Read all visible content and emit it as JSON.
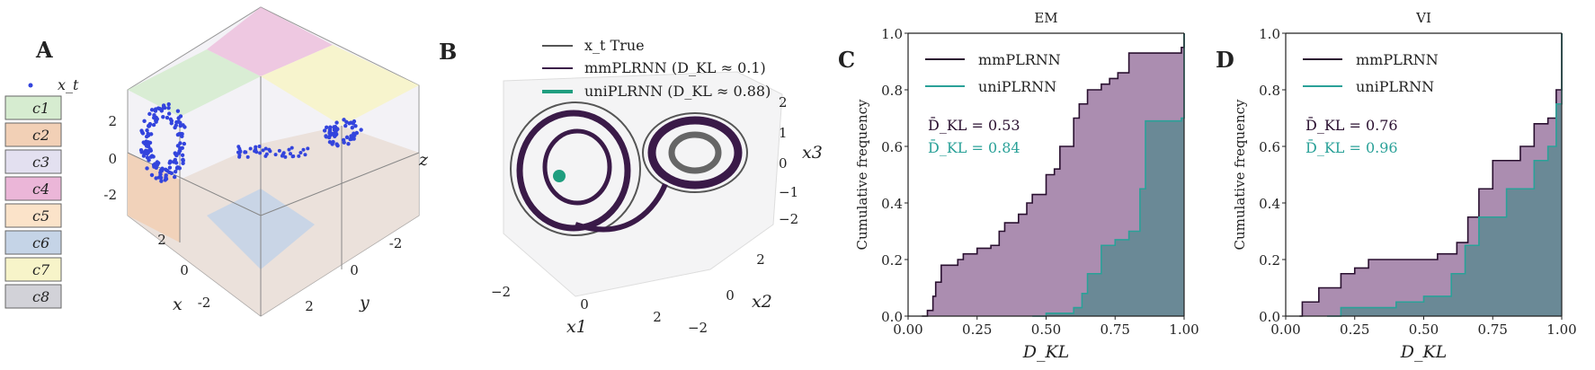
{
  "panel_a": {
    "label": "A",
    "legend_point": "x_t",
    "legend": [
      {
        "label": "c1",
        "color": "#d6ecd0"
      },
      {
        "label": "c2",
        "color": "#f2d0b6"
      },
      {
        "label": "c3",
        "color": "#e3e0f0"
      },
      {
        "label": "c4",
        "color": "#ebb6d8"
      },
      {
        "label": "c5",
        "color": "#fbe3c9"
      },
      {
        "label": "c6",
        "color": "#c5d4e7"
      },
      {
        "label": "c7",
        "color": "#f7f4c9"
      },
      {
        "label": "c8",
        "color": "#d2d2d8"
      }
    ],
    "z_ticks": [
      "2",
      "0",
      "-2"
    ],
    "x_ticks": [
      "2",
      "0",
      "-2"
    ],
    "y_ticks": [
      "-2",
      "0",
      "2"
    ],
    "x_label": "x",
    "y_label": "y",
    "z_label": "z",
    "point_color": "#3344dd"
  },
  "panel_b": {
    "label": "B",
    "legend": [
      "x_t True",
      "mmPLRNN (D_KL ≈ 0.1)",
      "uniPLRNN (D_KL ≈ 0.88)"
    ],
    "x3_ticks": [
      "2",
      "1",
      "0",
      "−1",
      "−2"
    ],
    "x1_ticks": [
      "−2",
      "0",
      "2"
    ],
    "x2_ticks": [
      "2",
      "0",
      "−2"
    ],
    "x1_label": "x1",
    "x2_label": "x2",
    "x3_label": "x3",
    "colors": {
      "true": "#555555",
      "mm": "#3a1a48",
      "uni": "#1f9e7f"
    }
  },
  "chart_data": [
    {
      "type": "area",
      "panel_label": "C",
      "title": "EM",
      "xlabel": "D_KL",
      "ylabel": "Cumulative frequency",
      "xlim": [
        0,
        1
      ],
      "ylim": [
        0,
        1
      ],
      "xticks": [
        "0.00",
        "0.25",
        "0.50",
        "0.75",
        "1.00"
      ],
      "yticks": [
        "0.0",
        "0.2",
        "0.4",
        "0.6",
        "0.8",
        "1.0"
      ],
      "legend_placement": "top-left",
      "annotations": [
        "D̄_KL = 0.53",
        "D̄_KL = 0.84"
      ],
      "series": [
        {
          "name": "mmPLRNN",
          "line_color": "#2a1030",
          "fill_color": "#ab8db0",
          "x": [
            0.05,
            0.07,
            0.09,
            0.1,
            0.12,
            0.18,
            0.2,
            0.25,
            0.3,
            0.33,
            0.35,
            0.4,
            0.43,
            0.45,
            0.5,
            0.53,
            0.55,
            0.6,
            0.62,
            0.65,
            0.7,
            0.73,
            0.76,
            0.8,
            0.99,
            1.0
          ],
          "y": [
            0.0,
            0.02,
            0.07,
            0.12,
            0.18,
            0.2,
            0.22,
            0.24,
            0.25,
            0.3,
            0.33,
            0.36,
            0.4,
            0.43,
            0.5,
            0.52,
            0.6,
            0.7,
            0.75,
            0.8,
            0.82,
            0.84,
            0.86,
            0.93,
            0.95,
            1.0
          ]
        },
        {
          "name": "uniPLRNN",
          "line_color": "#2aa198",
          "fill_color": "#6a8996",
          "x": [
            0.45,
            0.5,
            0.6,
            0.63,
            0.65,
            0.7,
            0.75,
            0.8,
            0.84,
            0.86,
            0.99,
            1.0
          ],
          "y": [
            0.0,
            0.01,
            0.03,
            0.08,
            0.15,
            0.25,
            0.27,
            0.3,
            0.45,
            0.69,
            0.7,
            1.0
          ]
        }
      ]
    },
    {
      "type": "area",
      "panel_label": "D",
      "title": "VI",
      "xlabel": "D_KL",
      "ylabel": "Cumulative frequency",
      "xlim": [
        0,
        1
      ],
      "ylim": [
        0,
        1
      ],
      "xticks": [
        "0.00",
        "0.25",
        "0.50",
        "0.75",
        "1.00"
      ],
      "yticks": [
        "0.0",
        "0.2",
        "0.4",
        "0.6",
        "0.8",
        "1.0"
      ],
      "legend_placement": "top-left",
      "annotations": [
        "D̄_KL = 0.76",
        "D̄_KL = 0.96"
      ],
      "series": [
        {
          "name": "mmPLRNN",
          "line_color": "#2a1030",
          "fill_color": "#ab8db0",
          "x": [
            0.05,
            0.06,
            0.12,
            0.2,
            0.25,
            0.3,
            0.45,
            0.55,
            0.62,
            0.66,
            0.7,
            0.75,
            0.85,
            0.9,
            0.95,
            0.98,
            1.0
          ],
          "y": [
            0.0,
            0.05,
            0.1,
            0.15,
            0.17,
            0.2,
            0.2,
            0.22,
            0.26,
            0.35,
            0.45,
            0.55,
            0.6,
            0.68,
            0.7,
            0.8,
            1.0
          ]
        },
        {
          "name": "uniPLRNN",
          "line_color": "#2aa198",
          "fill_color": "#6a8996",
          "x": [
            0.15,
            0.2,
            0.4,
            0.5,
            0.6,
            0.65,
            0.7,
            0.8,
            0.9,
            0.95,
            0.98,
            1.0
          ],
          "y": [
            0.0,
            0.03,
            0.05,
            0.07,
            0.15,
            0.25,
            0.35,
            0.45,
            0.55,
            0.6,
            0.75,
            1.0
          ]
        }
      ]
    }
  ]
}
